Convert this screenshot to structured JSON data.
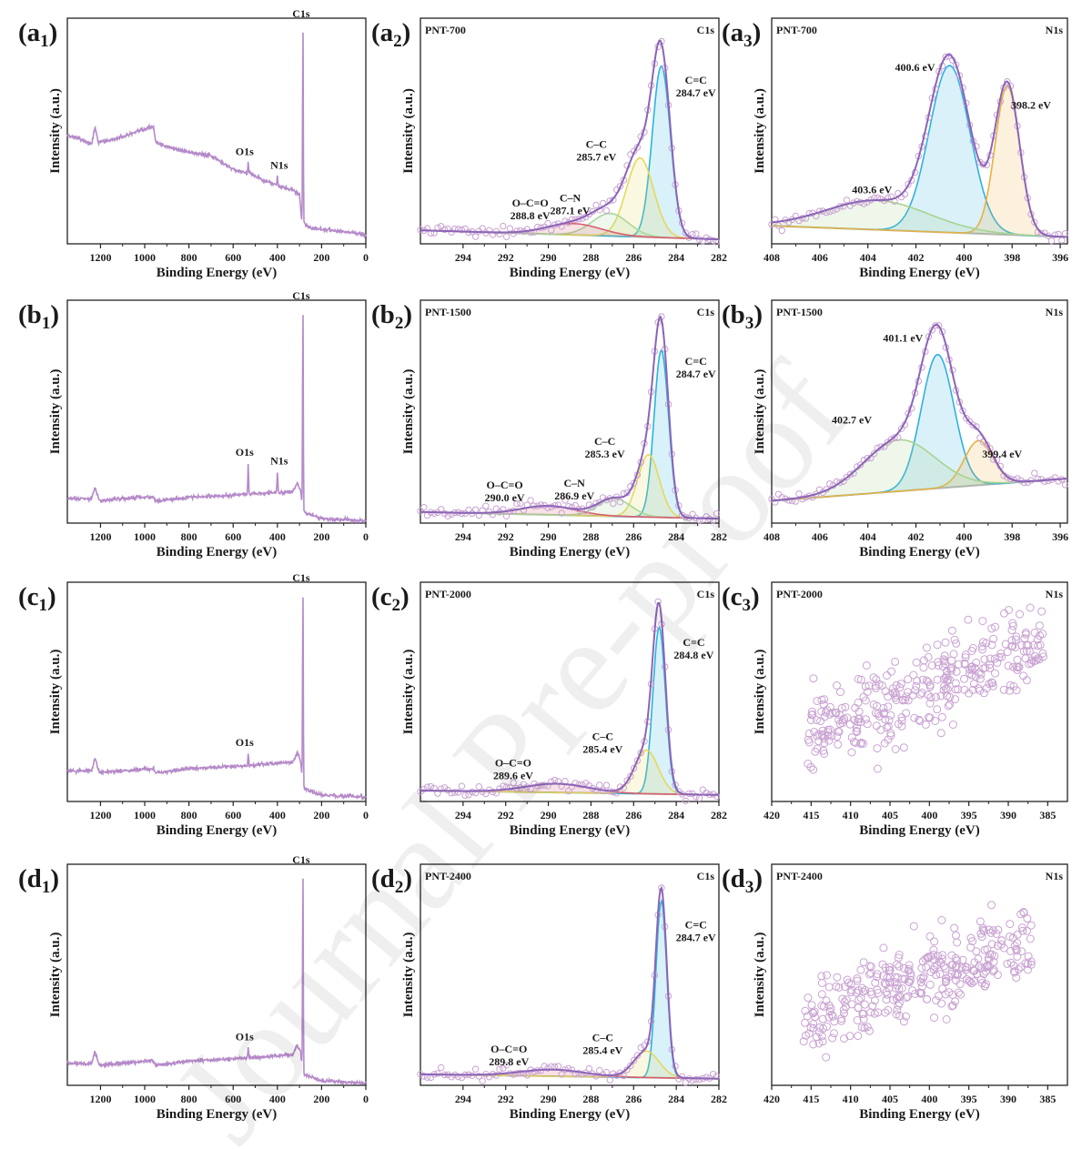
{
  "figure": {
    "watermark": "Journal Pre-proof",
    "common": {
      "xlabel": "Binding Energy (eV)",
      "ylabel": "Intensity (a.u.)"
    }
  },
  "colors": {
    "survey": "#b58ac9",
    "envelope": "#8c64b8",
    "scatter": "#c9a3d2",
    "background": "#b4b4b4",
    "c_c_double": "#2bb4dc",
    "c_c": "#e6d85a",
    "c_n": "#a8d89a",
    "o_c_o": "#d8606e",
    "n_pyridinic": "#e8b040",
    "n_graphitic": "#30b0e0",
    "n_oxidized": "#a6d490",
    "axis": "#222222"
  },
  "chart_data": [
    {
      "type": "line",
      "id": "a1",
      "panel_letter": "a",
      "panel_index": "1",
      "xlabel": "Binding Energy (eV)",
      "ylabel": "Intensity (a.u.)",
      "xlim": [
        1350,
        0
      ],
      "xticks": [
        1200,
        1000,
        800,
        600,
        400,
        200,
        0
      ],
      "ylim": [
        0,
        1
      ],
      "peaks": [
        {
          "label": "C1s",
          "x": 284.5,
          "y": 0.98
        },
        {
          "label": "O1s",
          "x": 532,
          "y": 0.36
        },
        {
          "label": "N1s",
          "x": 400,
          "y": 0.3
        }
      ],
      "baseline": [
        [
          1350,
          0.48
        ],
        [
          1300,
          0.47
        ],
        [
          1240,
          0.44
        ],
        [
          1225,
          0.52
        ],
        [
          1210,
          0.45
        ],
        [
          1150,
          0.46
        ],
        [
          1050,
          0.49
        ],
        [
          960,
          0.52
        ],
        [
          950,
          0.45
        ],
        [
          900,
          0.43
        ],
        [
          820,
          0.41
        ],
        [
          760,
          0.4
        ],
        [
          700,
          0.39
        ],
        [
          650,
          0.36
        ],
        [
          600,
          0.33
        ],
        [
          560,
          0.32
        ],
        [
          520,
          0.31
        ],
        [
          480,
          0.29
        ],
        [
          430,
          0.27
        ],
        [
          380,
          0.25
        ],
        [
          340,
          0.24
        ],
        [
          300,
          0.22
        ],
        [
          290,
          0.1
        ],
        [
          250,
          0.07
        ],
        [
          150,
          0.06
        ],
        [
          60,
          0.05
        ],
        [
          0,
          0.04
        ]
      ]
    },
    {
      "type": "line",
      "id": "a2",
      "panel_letter": "a",
      "panel_index": "2",
      "sample": "PNT-700",
      "region": "C1s",
      "xlabel": "Binding Energy (eV)",
      "ylabel": "Intensity (a.u.)",
      "xlim": [
        296,
        282
      ],
      "xticks": [
        294,
        292,
        290,
        288,
        286,
        284,
        282
      ],
      "ylim": [
        0,
        1
      ],
      "bg": [
        0.06,
        0.02
      ],
      "components": [
        {
          "name": "C=C",
          "center": 284.7,
          "height": 0.76,
          "fwhm": 1.0,
          "label": "C=C\n284.7 eV"
        },
        {
          "name": "C-C",
          "center": 285.7,
          "height": 0.35,
          "fwhm": 1.5,
          "label": "C–C\n285.7 eV"
        },
        {
          "name": "C-N",
          "center": 287.1,
          "height": 0.1,
          "fwhm": 2.0,
          "label": "C–N\n287.1 eV"
        },
        {
          "name": "O-C=O",
          "center": 288.8,
          "height": 0.05,
          "fwhm": 3.0,
          "label": "O–C=O\n288.8 eV"
        }
      ]
    },
    {
      "type": "line",
      "id": "a3",
      "panel_letter": "a",
      "panel_index": "3",
      "sample": "PNT-700",
      "region": "N1s",
      "xlabel": "Binding Energy (eV)",
      "ylabel": "Intensity (a.u.)",
      "xlim": [
        408,
        395.7
      ],
      "xticks": [
        408,
        406,
        404,
        402,
        400,
        398,
        396
      ],
      "ylim": [
        0,
        1
      ],
      "bg": [
        0.08,
        0.03
      ],
      "components": [
        {
          "name": "graphitic",
          "center": 400.6,
          "height": 0.74,
          "fwhm": 2.0,
          "label": "400.6 eV"
        },
        {
          "name": "pyridinic",
          "center": 398.2,
          "height": 0.66,
          "fwhm": 1.2,
          "label": "398.2 eV"
        },
        {
          "name": "oxidized",
          "center": 403.6,
          "height": 0.13,
          "fwhm": 5.0,
          "label": "403.6 eV"
        }
      ]
    },
    {
      "type": "line",
      "id": "b1",
      "panel_letter": "b",
      "panel_index": "1",
      "xlabel": "Binding Energy (eV)",
      "ylabel": "Intensity (a.u.)",
      "xlim": [
        1350,
        0
      ],
      "xticks": [
        1200,
        1000,
        800,
        600,
        400,
        200,
        0
      ],
      "ylim": [
        0,
        1
      ],
      "peaks": [
        {
          "label": "C1s",
          "x": 284.5,
          "y": 0.98
        },
        {
          "label": "O1s",
          "x": 532,
          "y": 0.27
        },
        {
          "label": "N1s",
          "x": 400,
          "y": 0.23
        }
      ],
      "baseline": [
        [
          1350,
          0.11
        ],
        [
          1240,
          0.11
        ],
        [
          1225,
          0.16
        ],
        [
          1205,
          0.1
        ],
        [
          1100,
          0.11
        ],
        [
          960,
          0.12
        ],
        [
          950,
          0.1
        ],
        [
          800,
          0.115
        ],
        [
          600,
          0.125
        ],
        [
          450,
          0.135
        ],
        [
          330,
          0.14
        ],
        [
          310,
          0.18
        ],
        [
          295,
          0.15
        ],
        [
          285,
          0.05
        ],
        [
          200,
          0.02
        ],
        [
          0,
          0.01
        ]
      ]
    },
    {
      "type": "line",
      "id": "b2",
      "panel_letter": "b",
      "panel_index": "2",
      "sample": "PNT-1500",
      "region": "C1s",
      "xlabel": "Binding Energy (eV)",
      "ylabel": "Intensity (a.u.)",
      "xlim": [
        296,
        282
      ],
      "xticks": [
        294,
        292,
        290,
        288,
        286,
        284,
        282
      ],
      "ylim": [
        0,
        1
      ],
      "bg": [
        0.05,
        0.02
      ],
      "components": [
        {
          "name": "C=C",
          "center": 284.7,
          "height": 0.75,
          "fwhm": 0.8,
          "label": "C=C\n284.7 eV"
        },
        {
          "name": "C-C",
          "center": 285.3,
          "height": 0.28,
          "fwhm": 1.2,
          "label": "C–C\n285.3 eV"
        },
        {
          "name": "C-N",
          "center": 286.9,
          "height": 0.08,
          "fwhm": 1.8,
          "label": "C–N\n286.9 eV"
        },
        {
          "name": "O-C=O",
          "center": 290.0,
          "height": 0.04,
          "fwhm": 3.0,
          "label": "O–C=O\n290.0 eV"
        }
      ]
    },
    {
      "type": "line",
      "id": "b3",
      "panel_letter": "b",
      "panel_index": "3",
      "sample": "PNT-1500",
      "region": "N1s",
      "xlabel": "Binding Energy (eV)",
      "ylabel": "Intensity (a.u.)",
      "xlim": [
        408,
        395.7
      ],
      "xticks": [
        408,
        406,
        404,
        402,
        400,
        398,
        396
      ],
      "ylim": [
        0,
        1
      ],
      "bg": [
        0.1,
        0.2
      ],
      "components": [
        {
          "name": "graphitic",
          "center": 401.1,
          "height": 0.6,
          "fwhm": 1.6,
          "label": "401.1 eV"
        },
        {
          "name": "pyridinic",
          "center": 399.4,
          "height": 0.2,
          "fwhm": 1.4,
          "label": "399.4 eV"
        },
        {
          "name": "oxidized",
          "center": 402.7,
          "height": 0.23,
          "fwhm": 3.5,
          "label": "402.7 eV"
        }
      ]
    },
    {
      "type": "line",
      "id": "c1",
      "panel_letter": "c",
      "panel_index": "1",
      "xlabel": "Binding Energy (eV)",
      "ylabel": "Intensity (a.u.)",
      "xlim": [
        1350,
        0
      ],
      "xticks": [
        1200,
        1000,
        800,
        600,
        400,
        200,
        0
      ],
      "ylim": [
        0,
        1
      ],
      "peaks": [
        {
          "label": "C1s",
          "x": 284.5,
          "y": 0.98
        },
        {
          "label": "O1s",
          "x": 532,
          "y": 0.22
        }
      ],
      "baseline": [
        [
          1350,
          0.14
        ],
        [
          1240,
          0.14
        ],
        [
          1225,
          0.2
        ],
        [
          1205,
          0.13
        ],
        [
          1100,
          0.14
        ],
        [
          960,
          0.15
        ],
        [
          950,
          0.13
        ],
        [
          800,
          0.15
        ],
        [
          600,
          0.16
        ],
        [
          450,
          0.17
        ],
        [
          330,
          0.18
        ],
        [
          310,
          0.22
        ],
        [
          295,
          0.19
        ],
        [
          285,
          0.06
        ],
        [
          200,
          0.03
        ],
        [
          0,
          0.02
        ]
      ]
    },
    {
      "type": "line",
      "id": "c2",
      "panel_letter": "c",
      "panel_index": "2",
      "sample": "PNT-2000",
      "region": "C1s",
      "xlabel": "Binding Energy (eV)",
      "ylabel": "Intensity (a.u.)",
      "xlim": [
        296,
        282
      ],
      "xticks": [
        294,
        292,
        290,
        288,
        286,
        284,
        282
      ],
      "ylim": [
        0,
        1
      ],
      "bg": [
        0.05,
        0.03
      ],
      "components": [
        {
          "name": "C=C",
          "center": 284.8,
          "height": 0.76,
          "fwhm": 0.7,
          "label": "C=C\n284.8 eV"
        },
        {
          "name": "C-C",
          "center": 285.4,
          "height": 0.2,
          "fwhm": 1.3,
          "label": "C–C\n285.4 eV"
        },
        {
          "name": "O-C=O",
          "center": 289.6,
          "height": 0.04,
          "fwhm": 3.5,
          "label": "O–C=O\n289.6 eV"
        }
      ]
    },
    {
      "type": "scatter",
      "id": "c3",
      "panel_letter": "c",
      "panel_index": "3",
      "sample": "PNT-2000",
      "region": "N1s",
      "xlabel": "Binding Energy (eV)",
      "ylabel": "Intensity (a.u.)",
      "xlim": [
        420,
        382.5
      ],
      "xticks": [
        420,
        415,
        410,
        405,
        400,
        395,
        390,
        385
      ],
      "ylim": [
        0,
        1
      ],
      "scatter_range": [
        415.5,
        385.5
      ],
      "trend": [
        0.3,
        0.72
      ]
    },
    {
      "type": "line",
      "id": "d1",
      "panel_letter": "d",
      "panel_index": "1",
      "xlabel": "Binding Energy (eV)",
      "ylabel": "Intensity (a.u.)",
      "xlim": [
        1350,
        0
      ],
      "xticks": [
        1200,
        1000,
        800,
        600,
        400,
        200,
        0
      ],
      "ylim": [
        0,
        1
      ],
      "peaks": [
        {
          "label": "C1s",
          "x": 284.5,
          "y": 0.98
        },
        {
          "label": "O1s",
          "x": 532,
          "y": 0.17
        }
      ],
      "baseline": [
        [
          1350,
          0.1
        ],
        [
          1240,
          0.1
        ],
        [
          1225,
          0.15
        ],
        [
          1205,
          0.09
        ],
        [
          1100,
          0.1
        ],
        [
          960,
          0.11
        ],
        [
          950,
          0.09
        ],
        [
          800,
          0.11
        ],
        [
          600,
          0.12
        ],
        [
          450,
          0.13
        ],
        [
          330,
          0.14
        ],
        [
          310,
          0.18
        ],
        [
          295,
          0.15
        ],
        [
          285,
          0.05
        ],
        [
          200,
          0.02
        ],
        [
          0,
          0.01
        ]
      ]
    },
    {
      "type": "line",
      "id": "d2",
      "panel_letter": "d",
      "panel_index": "2",
      "sample": "PNT-2400",
      "region": "C1s",
      "xlabel": "Binding Energy (eV)",
      "ylabel": "Intensity (a.u.)",
      "xlim": [
        296,
        282
      ],
      "xticks": [
        294,
        292,
        290,
        288,
        286,
        284,
        282
      ],
      "ylim": [
        0,
        1
      ],
      "bg": [
        0.05,
        0.03
      ],
      "components": [
        {
          "name": "C=C",
          "center": 284.7,
          "height": 0.8,
          "fwhm": 0.6,
          "label": "C=C\n284.7 eV"
        },
        {
          "name": "C-C",
          "center": 285.4,
          "height": 0.12,
          "fwhm": 1.4,
          "label": "C–C\n285.4 eV"
        },
        {
          "name": "O-C=O",
          "center": 289.8,
          "height": 0.03,
          "fwhm": 3.5,
          "label": "O–C=O\n289.8 eV"
        }
      ]
    },
    {
      "type": "scatter",
      "id": "d3",
      "panel_letter": "d",
      "panel_index": "3",
      "sample": "PNT-2400",
      "region": "N1s",
      "xlabel": "Binding Energy (eV)",
      "ylabel": "Intensity (a.u.)",
      "xlim": [
        420,
        382.5
      ],
      "xticks": [
        420,
        415,
        410,
        405,
        400,
        395,
        390,
        385
      ],
      "ylim": [
        0,
        1
      ],
      "scatter_range": [
        416,
        387
      ],
      "trend": [
        0.3,
        0.65
      ]
    }
  ]
}
